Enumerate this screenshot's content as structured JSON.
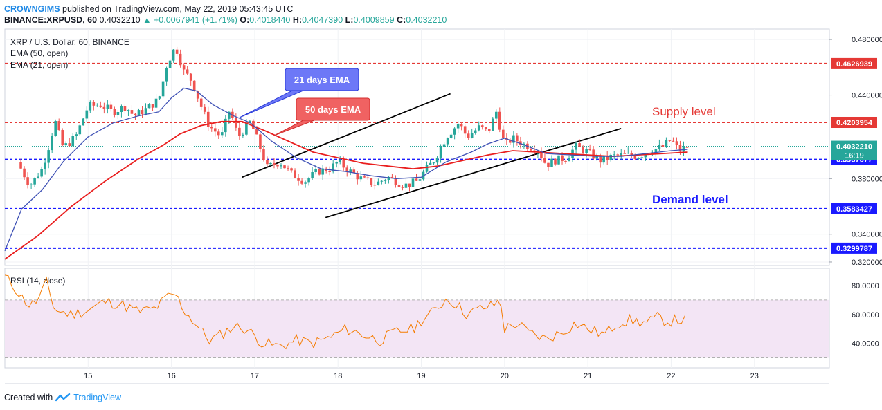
{
  "header": {
    "author": "CROWNGIMS",
    "published": "published on TradingView.com, May 22, 2019 05:43:45 UTC",
    "symbol": "BINANCE:XRPUSD, 60",
    "last": "0.4032210",
    "change_arrow": "▲",
    "change": "+0.0067941 (+1.71%)",
    "o_label": "O:",
    "o": "0.4018440",
    "h_label": "H:",
    "h": "0.4047390",
    "l_label": "L:",
    "l": "0.4009859",
    "c_label": "C:",
    "c": "0.4032210"
  },
  "legend": {
    "title": "XRP / U.S. Dollar, 60, BINANCE",
    "ema50": "EMA (50, open)",
    "ema21": "EMA (21, open)",
    "rsi": "RSI (14, close)"
  },
  "annotations": {
    "ema21_callout": "21 days EMA",
    "ema50_callout": "50 days EMA",
    "supply": "Supply level",
    "demand": "Demand level"
  },
  "footer": {
    "created_with": "Created with",
    "brand": "TradingView"
  },
  "colors": {
    "up": "#26a69a",
    "down": "#ef5350",
    "ema21": "#3f51b5",
    "ema50": "#e91e1e",
    "supply": "#e53935",
    "demand": "#1a1aff",
    "rsi_line": "#f57c00",
    "rsi_band": "#f3e5f5",
    "callout_blue": "#6d78f7",
    "callout_red": "#f06262"
  },
  "chart_data": {
    "type": "candlestick",
    "x_ticks": [
      "15",
      "16",
      "17",
      "18",
      "19",
      "20",
      "21",
      "22",
      "23"
    ],
    "y_ticks": [
      "0.4800000",
      "0.4400000",
      "0.3800000",
      "0.3400000",
      "0.3200000"
    ],
    "ylim": [
      0.3175,
      0.4875
    ],
    "levels": [
      {
        "value": 0.4626939,
        "label": "0.4626939",
        "kind": "supply"
      },
      {
        "value": 0.4203954,
        "label": "0.4203954",
        "kind": "supply"
      },
      {
        "value": 0.3937677,
        "label": "0.3937677",
        "kind": "demand"
      },
      {
        "value": 0.3583427,
        "label": "0.3583427",
        "kind": "demand"
      },
      {
        "value": 0.3299787,
        "label": "0.3299787",
        "kind": "demand"
      }
    ],
    "last_price": {
      "value": 0.403221,
      "label": "0.4032210",
      "countdown": "16:19"
    },
    "close_path": [
      [
        14.15,
        0.392
      ],
      [
        14.3,
        0.375
      ],
      [
        14.45,
        0.387
      ],
      [
        14.55,
        0.408
      ],
      [
        14.6,
        0.422
      ],
      [
        14.7,
        0.402
      ],
      [
        14.85,
        0.41
      ],
      [
        15.0,
        0.432
      ],
      [
        15.15,
        0.433
      ],
      [
        15.3,
        0.428
      ],
      [
        15.45,
        0.432
      ],
      [
        15.55,
        0.425
      ],
      [
        15.7,
        0.43
      ],
      [
        15.85,
        0.437
      ],
      [
        15.95,
        0.463
      ],
      [
        16.05,
        0.475
      ],
      [
        16.15,
        0.457
      ],
      [
        16.25,
        0.45
      ],
      [
        16.35,
        0.433
      ],
      [
        16.45,
        0.418
      ],
      [
        16.6,
        0.41
      ],
      [
        16.7,
        0.43
      ],
      [
        16.8,
        0.41
      ],
      [
        16.95,
        0.421
      ],
      [
        17.05,
        0.405
      ],
      [
        17.15,
        0.388
      ],
      [
        17.3,
        0.392
      ],
      [
        17.45,
        0.383
      ],
      [
        17.6,
        0.378
      ],
      [
        17.75,
        0.385
      ],
      [
        17.9,
        0.387
      ],
      [
        18.0,
        0.392
      ],
      [
        18.15,
        0.385
      ],
      [
        18.3,
        0.379
      ],
      [
        18.45,
        0.376
      ],
      [
        18.6,
        0.381
      ],
      [
        18.8,
        0.375
      ],
      [
        18.95,
        0.378
      ],
      [
        19.05,
        0.386
      ],
      [
        19.15,
        0.393
      ],
      [
        19.3,
        0.41
      ],
      [
        19.45,
        0.42
      ],
      [
        19.55,
        0.41
      ],
      [
        19.7,
        0.417
      ],
      [
        19.8,
        0.413
      ],
      [
        19.9,
        0.428
      ],
      [
        20.0,
        0.404
      ],
      [
        20.1,
        0.409
      ],
      [
        20.25,
        0.404
      ],
      [
        20.4,
        0.401
      ],
      [
        20.5,
        0.39
      ],
      [
        20.6,
        0.393
      ],
      [
        20.75,
        0.395
      ],
      [
        20.85,
        0.403
      ],
      [
        21.0,
        0.399
      ],
      [
        21.15,
        0.393
      ],
      [
        21.3,
        0.396
      ],
      [
        21.45,
        0.397
      ],
      [
        21.6,
        0.396
      ],
      [
        21.75,
        0.4
      ],
      [
        21.9,
        0.403
      ],
      [
        22.0,
        0.408
      ],
      [
        22.1,
        0.4
      ],
      [
        22.2,
        0.403
      ]
    ],
    "ema21": [
      [
        14.0,
        0.328
      ],
      [
        14.2,
        0.358
      ],
      [
        14.45,
        0.372
      ],
      [
        14.7,
        0.392
      ],
      [
        15.0,
        0.41
      ],
      [
        15.3,
        0.42
      ],
      [
        15.6,
        0.425
      ],
      [
        15.85,
        0.428
      ],
      [
        16.0,
        0.438
      ],
      [
        16.15,
        0.445
      ],
      [
        16.3,
        0.443
      ],
      [
        16.5,
        0.433
      ],
      [
        16.75,
        0.425
      ],
      [
        16.95,
        0.42
      ],
      [
        17.2,
        0.407
      ],
      [
        17.5,
        0.395
      ],
      [
        17.8,
        0.387
      ],
      [
        18.1,
        0.385
      ],
      [
        18.4,
        0.382
      ],
      [
        18.7,
        0.38
      ],
      [
        19.0,
        0.381
      ],
      [
        19.3,
        0.392
      ],
      [
        19.6,
        0.399
      ],
      [
        19.8,
        0.405
      ],
      [
        20.0,
        0.409
      ],
      [
        20.2,
        0.405
      ],
      [
        20.5,
        0.398
      ],
      [
        20.8,
        0.397
      ],
      [
        21.1,
        0.396
      ],
      [
        21.4,
        0.396
      ],
      [
        21.7,
        0.398
      ],
      [
        22.0,
        0.4
      ],
      [
        22.2,
        0.401
      ]
    ],
    "ema50": [
      [
        14.0,
        0.322
      ],
      [
        14.4,
        0.339
      ],
      [
        14.8,
        0.36
      ],
      [
        15.2,
        0.378
      ],
      [
        15.6,
        0.394
      ],
      [
        15.9,
        0.404
      ],
      [
        16.1,
        0.412
      ],
      [
        16.35,
        0.418
      ],
      [
        16.6,
        0.421
      ],
      [
        16.85,
        0.421
      ],
      [
        17.1,
        0.415
      ],
      [
        17.4,
        0.407
      ],
      [
        17.7,
        0.399
      ],
      [
        18.0,
        0.395
      ],
      [
        18.3,
        0.391
      ],
      [
        18.6,
        0.389
      ],
      [
        18.9,
        0.387
      ],
      [
        19.2,
        0.389
      ],
      [
        19.5,
        0.393
      ],
      [
        19.8,
        0.397
      ],
      [
        20.1,
        0.4
      ],
      [
        20.4,
        0.399
      ],
      [
        20.7,
        0.398
      ],
      [
        21.0,
        0.397
      ],
      [
        21.3,
        0.396
      ],
      [
        21.6,
        0.397
      ],
      [
        21.9,
        0.398
      ],
      [
        22.2,
        0.399
      ]
    ],
    "channel": [
      {
        "from": [
          16.85,
          0.381
        ],
        "to": [
          19.35,
          0.441
        ]
      },
      {
        "from": [
          17.85,
          0.352
        ],
        "to": [
          21.4,
          0.416
        ]
      }
    ],
    "rsi": {
      "ylim": [
        25,
        90
      ],
      "y_ticks": [
        "80.0000",
        "60.0000",
        "40.0000"
      ],
      "band": [
        30,
        70
      ],
      "values": [
        [
          14.0,
          86
        ],
        [
          14.1,
          80
        ],
        [
          14.2,
          72
        ],
        [
          14.3,
          66
        ],
        [
          14.4,
          70
        ],
        [
          14.5,
          82
        ],
        [
          14.6,
          63
        ],
        [
          14.8,
          60
        ],
        [
          15.0,
          63
        ],
        [
          15.2,
          69
        ],
        [
          15.4,
          67
        ],
        [
          15.6,
          62
        ],
        [
          15.8,
          64
        ],
        [
          15.95,
          72
        ],
        [
          16.05,
          74
        ],
        [
          16.15,
          63
        ],
        [
          16.3,
          53
        ],
        [
          16.45,
          42
        ],
        [
          16.6,
          46
        ],
        [
          16.75,
          52
        ],
        [
          16.9,
          50
        ],
        [
          17.1,
          40
        ],
        [
          17.3,
          38
        ],
        [
          17.5,
          42
        ],
        [
          17.7,
          40
        ],
        [
          17.9,
          44
        ],
        [
          18.1,
          50
        ],
        [
          18.3,
          46
        ],
        [
          18.5,
          42
        ],
        [
          18.7,
          48
        ],
        [
          18.9,
          50
        ],
        [
          19.0,
          56
        ],
        [
          19.15,
          62
        ],
        [
          19.3,
          71
        ],
        [
          19.4,
          68
        ],
        [
          19.55,
          60
        ],
        [
          19.7,
          64
        ],
        [
          19.85,
          66
        ],
        [
          19.95,
          70
        ],
        [
          20.0,
          50
        ],
        [
          20.15,
          54
        ],
        [
          20.3,
          47
        ],
        [
          20.5,
          43
        ],
        [
          20.7,
          48
        ],
        [
          20.85,
          54
        ],
        [
          21.0,
          50
        ],
        [
          21.2,
          46
        ],
        [
          21.35,
          54
        ],
        [
          21.5,
          56
        ],
        [
          21.7,
          54
        ],
        [
          21.85,
          58
        ],
        [
          21.95,
          55
        ],
        [
          22.05,
          56
        ],
        [
          22.2,
          56
        ]
      ]
    }
  }
}
